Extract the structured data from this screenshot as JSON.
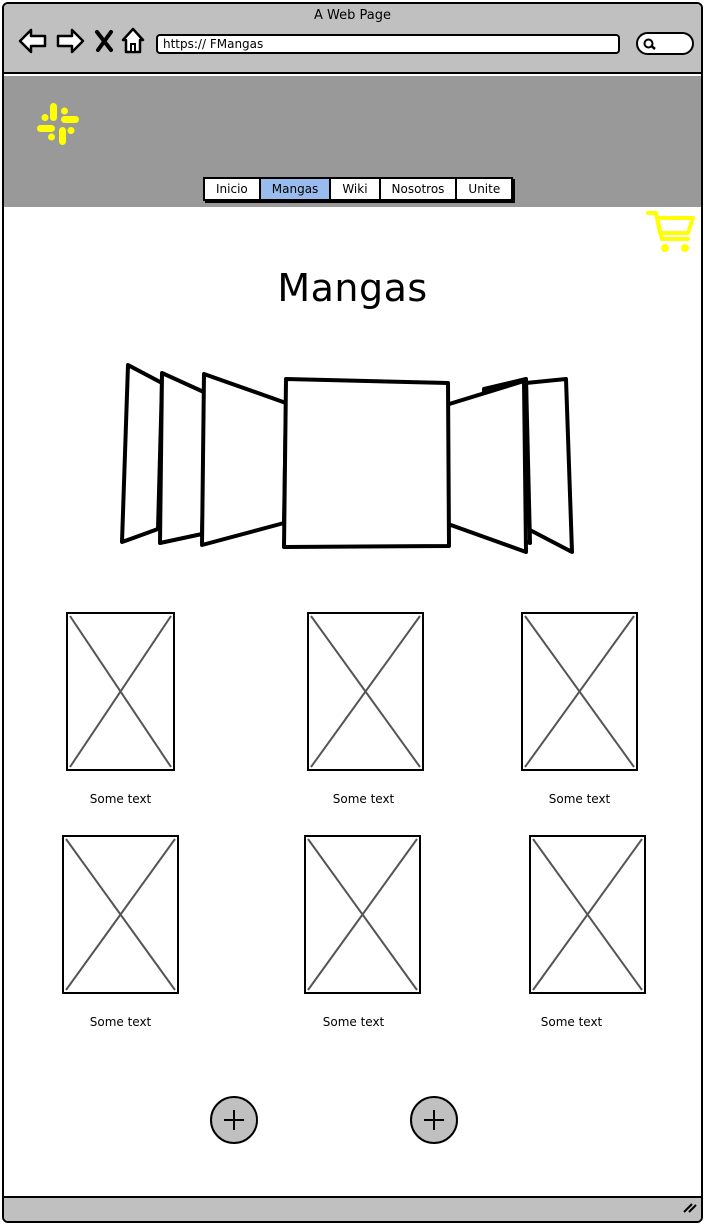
{
  "browser": {
    "window_title": "A Web Page",
    "url": "https:// FMangas",
    "icons": [
      "back-arrow-icon",
      "forward-arrow-icon",
      "close-x-icon",
      "home-icon",
      "search-icon"
    ]
  },
  "header": {
    "logo_icon": "logo-icon",
    "logo_color": "#ffff00",
    "background_color": "#999999",
    "nav": [
      {
        "label": "Inicio",
        "active": false
      },
      {
        "label": "Mangas",
        "active": true
      },
      {
        "label": "Wiki",
        "active": false
      },
      {
        "label": "Nosotros",
        "active": false
      },
      {
        "label": "Unite",
        "active": false
      }
    ],
    "active_tab_color": "#99bbee"
  },
  "cart": {
    "icon": "shopping-cart-icon",
    "color": "#ffff00"
  },
  "main": {
    "title": "Mangas",
    "grid": [
      {
        "caption": "Some text"
      },
      {
        "caption": "Some text"
      },
      {
        "caption": "Some text"
      },
      {
        "caption": "Some text"
      },
      {
        "caption": "Some text"
      },
      {
        "caption": "Some text"
      }
    ],
    "add_buttons": [
      {
        "icon": "plus-icon"
      },
      {
        "icon": "plus-icon"
      }
    ]
  },
  "status_bar": {
    "icon": "resize-grip-icon"
  }
}
